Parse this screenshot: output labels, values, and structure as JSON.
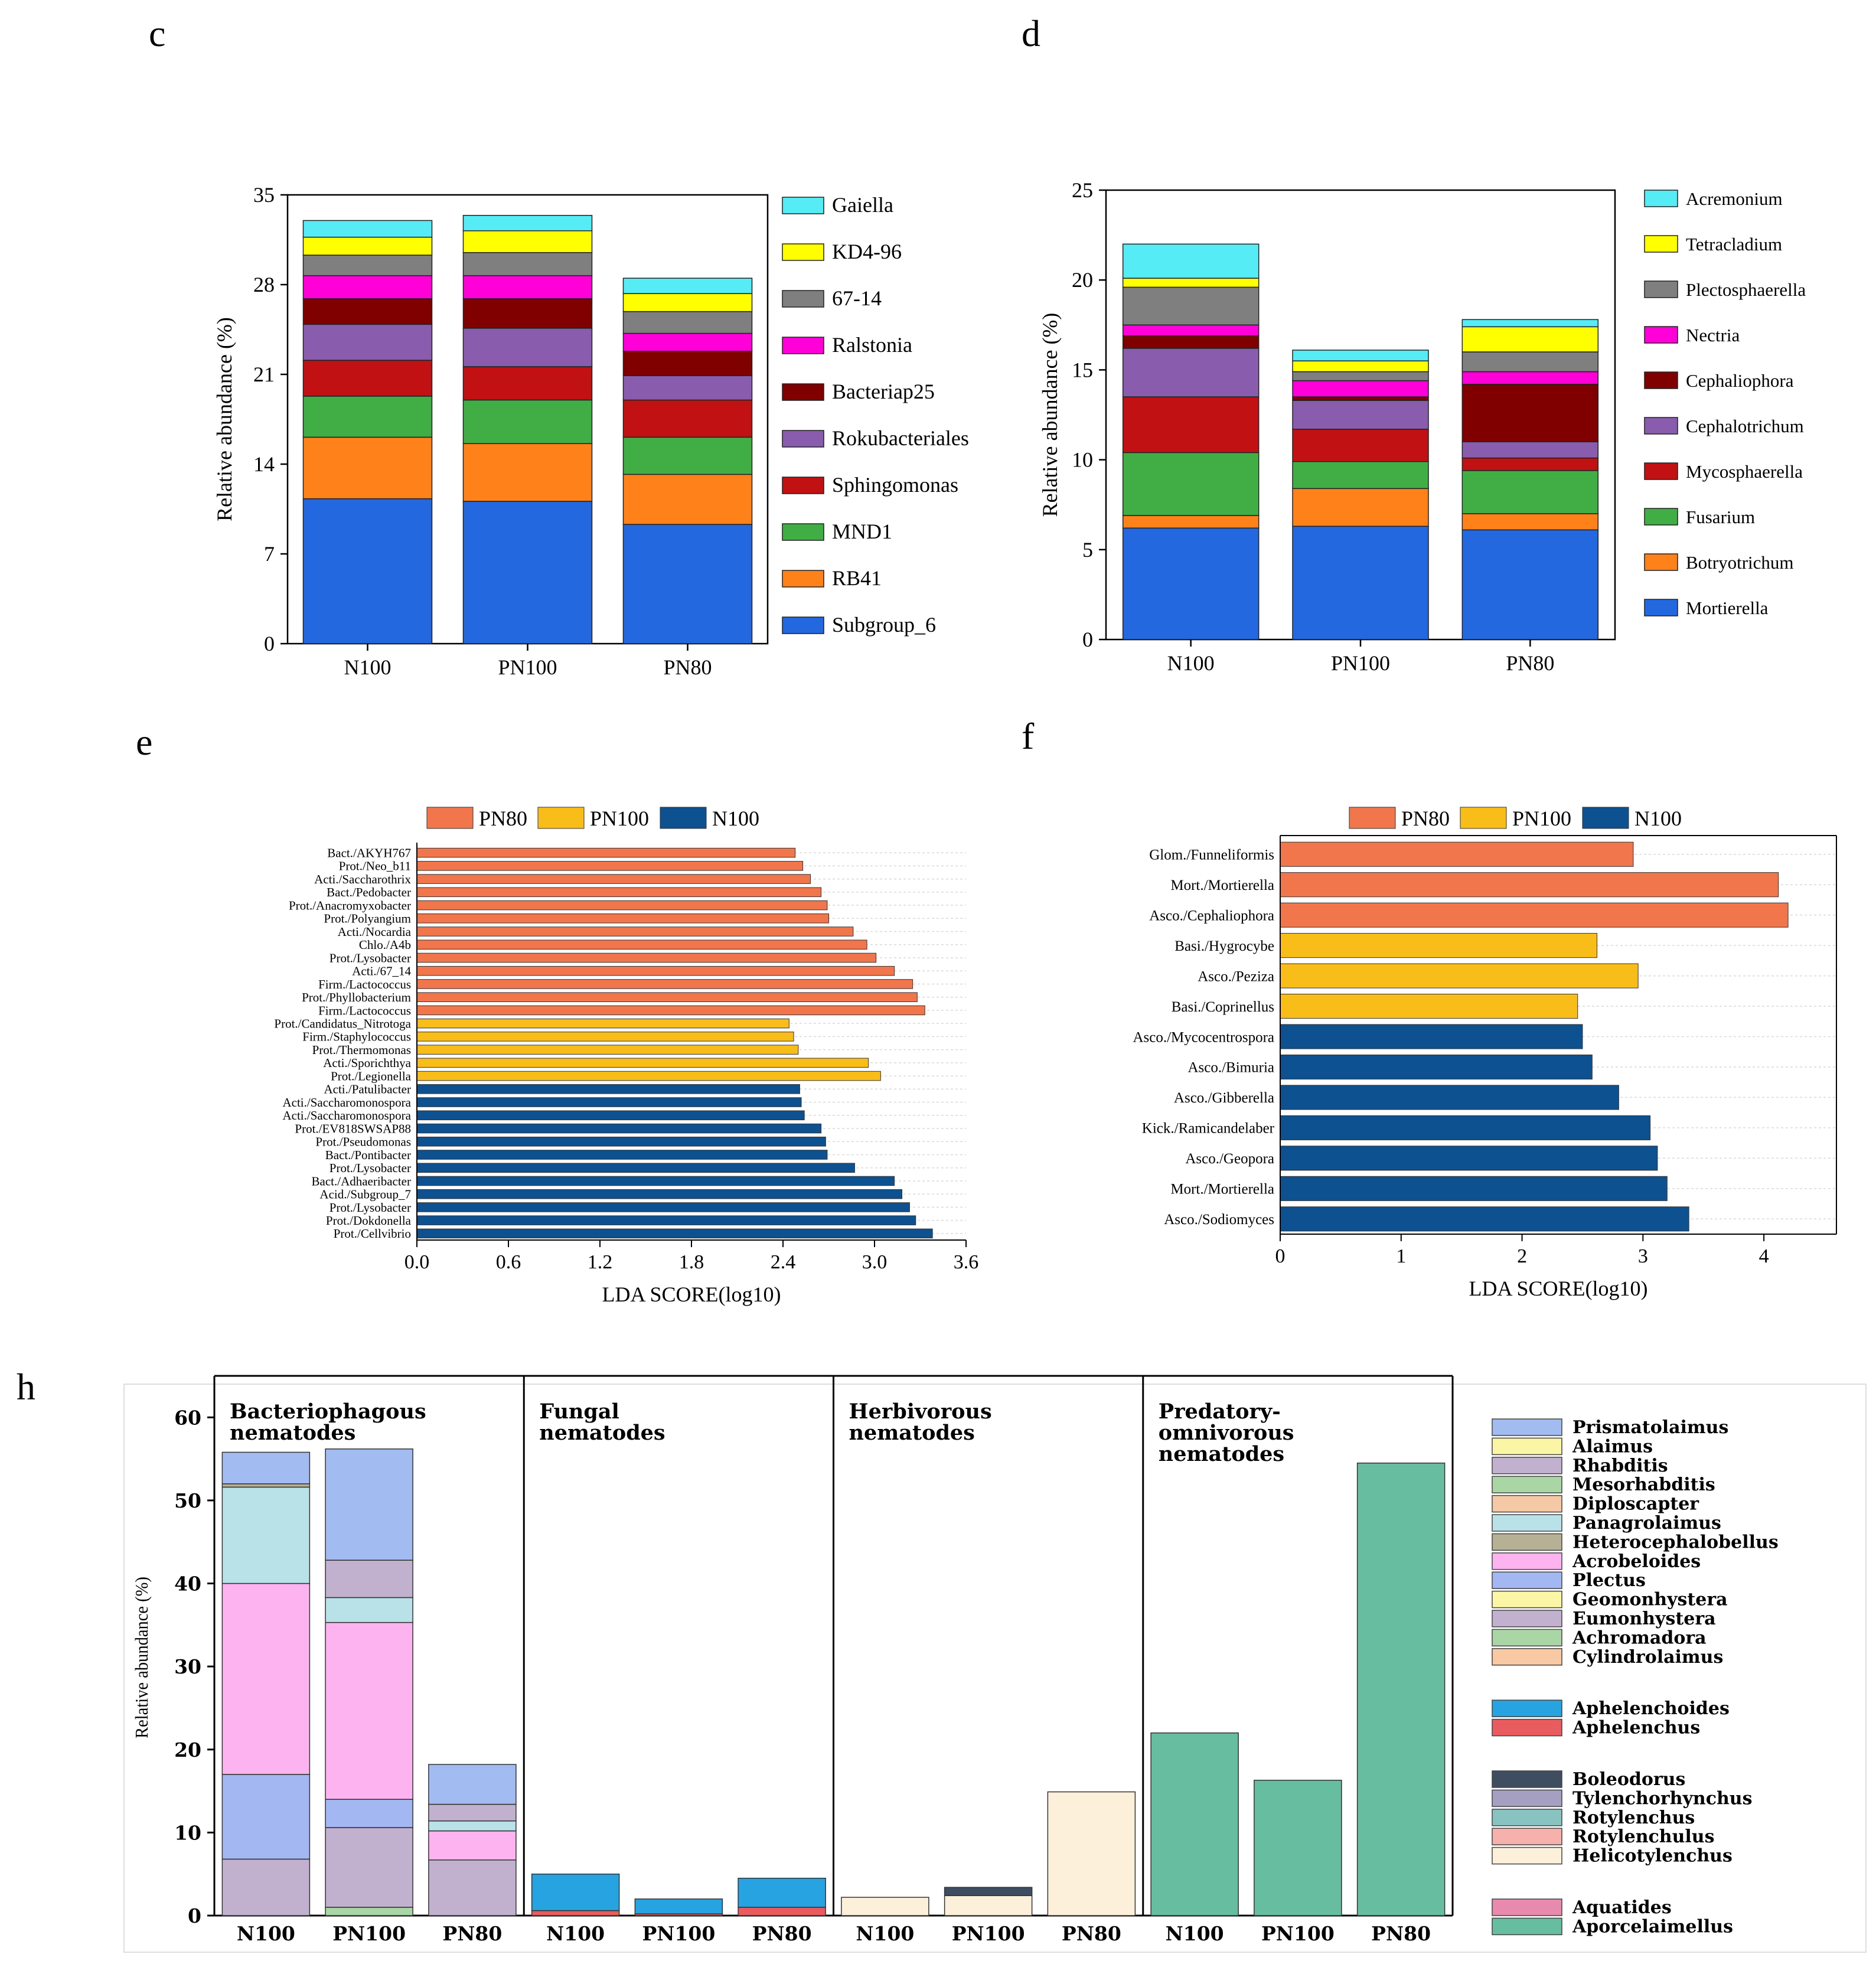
{
  "panel_labels": {
    "c": "c",
    "d": "d",
    "e": "e",
    "f": "f",
    "h": "h"
  },
  "chart_data": [
    {
      "id": "c",
      "type": "bar",
      "stacked": true,
      "categories": [
        "N100",
        "PN100",
        "PN80"
      ],
      "ylabel": "Relative abundance (%)",
      "xlabel": "",
      "ylim": [
        0,
        35
      ],
      "yticks": [
        0,
        7,
        14,
        21,
        28,
        35
      ],
      "legend_position": "right",
      "series": [
        {
          "name": "Subgroup_6",
          "color": "#2468e0",
          "values": [
            11.3,
            11.1,
            9.3
          ]
        },
        {
          "name": "RB41",
          "color": "#ff8119",
          "values": [
            4.8,
            4.5,
            3.9
          ]
        },
        {
          "name": "MND1",
          "color": "#40ae45",
          "values": [
            3.2,
            3.4,
            2.9
          ]
        },
        {
          "name": "Sphingomonas",
          "color": "#c21113",
          "values": [
            2.8,
            2.6,
            2.9
          ]
        },
        {
          "name": "Rokubacteriales",
          "color": "#8a5cad",
          "values": [
            2.8,
            3.0,
            1.9
          ]
        },
        {
          "name": "Bacteriap25",
          "color": "#800000",
          "values": [
            2.0,
            2.3,
            1.9
          ]
        },
        {
          "name": "Ralstonia",
          "color": "#ff00d9",
          "values": [
            1.8,
            1.8,
            1.4
          ]
        },
        {
          "name": "67-14",
          "color": "#7f7f7f",
          "values": [
            1.6,
            1.8,
            1.7
          ]
        },
        {
          "name": "KD4-96",
          "color": "#ffff00",
          "values": [
            1.4,
            1.7,
            1.4
          ]
        },
        {
          "name": "Gaiella",
          "color": "#55ecf6",
          "values": [
            1.3,
            1.2,
            1.2
          ]
        }
      ]
    },
    {
      "id": "d",
      "type": "bar",
      "stacked": true,
      "categories": [
        "N100",
        "PN100",
        "PN80"
      ],
      "ylabel": "Relative abundance (%)",
      "xlabel": "",
      "ylim": [
        0,
        25
      ],
      "yticks": [
        0,
        5,
        10,
        15,
        20,
        25
      ],
      "legend_position": "right",
      "series": [
        {
          "name": "Mortierella",
          "color": "#2468e0",
          "values": [
            6.2,
            6.3,
            6.1
          ]
        },
        {
          "name": "Botryotrichum",
          "color": "#ff8119",
          "values": [
            0.7,
            2.1,
            0.9
          ]
        },
        {
          "name": "Fusarium",
          "color": "#40ae45",
          "values": [
            3.5,
            1.5,
            2.4
          ]
        },
        {
          "name": "Mycosphaerella",
          "color": "#c21113",
          "values": [
            3.1,
            1.8,
            0.7
          ]
        },
        {
          "name": "Cephalotrichum",
          "color": "#8a5cad",
          "values": [
            2.7,
            1.6,
            0.9
          ]
        },
        {
          "name": "Cephaliophora",
          "color": "#800000",
          "values": [
            0.7,
            0.2,
            3.2
          ]
        },
        {
          "name": "Nectria",
          "color": "#ff00d9",
          "values": [
            0.6,
            0.9,
            0.7
          ]
        },
        {
          "name": "Plectosphaerella",
          "color": "#7f7f7f",
          "values": [
            2.1,
            0.5,
            1.1
          ]
        },
        {
          "name": "Tetracladium",
          "color": "#ffff00",
          "values": [
            0.5,
            0.6,
            1.4
          ]
        },
        {
          "name": "Acremonium",
          "color": "#55ecf6",
          "values": [
            1.9,
            0.6,
            0.4
          ]
        }
      ]
    },
    {
      "id": "e",
      "type": "bar",
      "orientation": "horizontal",
      "xlabel": "LDA SCORE(log10)",
      "xlim": [
        0,
        3.6
      ],
      "xticks": [
        "0.0",
        "0.6",
        "1.2",
        "1.8",
        "2.4",
        "3.0",
        "3.6"
      ],
      "legend": [
        {
          "name": "PN80",
          "color": "#f2764c"
        },
        {
          "name": "PN100",
          "color": "#f9bd19"
        },
        {
          "name": "N100",
          "color": "#0e5190"
        }
      ],
      "bars": [
        {
          "label": "Bact./AKYH767",
          "group": "PN80",
          "value": 2.48
        },
        {
          "label": "Prot./Neo_b11",
          "group": "PN80",
          "value": 2.53
        },
        {
          "label": "Acti./Saccharothrix",
          "group": "PN80",
          "value": 2.58
        },
        {
          "label": "Bact./Pedobacter",
          "group": "PN80",
          "value": 2.65
        },
        {
          "label": "Prot./Anacromyxobacter",
          "group": "PN80",
          "value": 2.69
        },
        {
          "label": "Prot./Polyangium",
          "group": "PN80",
          "value": 2.7
        },
        {
          "label": "Acti./Nocardia",
          "group": "PN80",
          "value": 2.86
        },
        {
          "label": "Chlo./A4b",
          "group": "PN80",
          "value": 2.95
        },
        {
          "label": "Prot./Lysobacter",
          "group": "PN80",
          "value": 3.01
        },
        {
          "label": "Acti./67_14",
          "group": "PN80",
          "value": 3.13
        },
        {
          "label": "Firm./Lactococcus",
          "group": "PN80",
          "value": 3.25
        },
        {
          "label": "Prot./Phyllobacterium",
          "group": "PN80",
          "value": 3.28
        },
        {
          "label": "Firm./Lactococcus",
          "group": "PN80",
          "value": 3.33
        },
        {
          "label": "Prot./Candidatus_Nitrotoga",
          "group": "PN100",
          "value": 2.44
        },
        {
          "label": "Firm./Staphylococcus",
          "group": "PN100",
          "value": 2.47
        },
        {
          "label": "Prot./Thermomonas",
          "group": "PN100",
          "value": 2.5
        },
        {
          "label": "Acti./Sporichthya",
          "group": "PN100",
          "value": 2.96
        },
        {
          "label": "Prot./Legionella",
          "group": "PN100",
          "value": 3.04
        },
        {
          "label": "Acti./Patulibacter",
          "group": "N100",
          "value": 2.51
        },
        {
          "label": "Acti./Saccharomonospora",
          "group": "N100",
          "value": 2.52
        },
        {
          "label": "Acti./Saccharomonospora",
          "group": "N100",
          "value": 2.54
        },
        {
          "label": "Prot./EV818SWSAP88",
          "group": "N100",
          "value": 2.65
        },
        {
          "label": "Prot./Pseudomonas",
          "group": "N100",
          "value": 2.68
        },
        {
          "label": "Bact./Pontibacter",
          "group": "N100",
          "value": 2.69
        },
        {
          "label": "Prot./Lysobacter",
          "group": "N100",
          "value": 2.87
        },
        {
          "label": "Bact./Adhaeribacter",
          "group": "N100",
          "value": 3.13
        },
        {
          "label": "Acid./Subgroup_7",
          "group": "N100",
          "value": 3.18
        },
        {
          "label": "Prot./Lysobacter",
          "group": "N100",
          "value": 3.23
        },
        {
          "label": "Prot./Dokdonella",
          "group": "N100",
          "value": 3.27
        },
        {
          "label": "Prot./Cellvibrio",
          "group": "N100",
          "value": 3.38
        }
      ]
    },
    {
      "id": "f",
      "type": "bar",
      "orientation": "horizontal",
      "xlabel": "LDA SCORE(log10)",
      "xlim": [
        0,
        4.6
      ],
      "xticks": [
        "0",
        "1",
        "2",
        "3",
        "4"
      ],
      "legend": [
        {
          "name": "PN80",
          "color": "#f2764c"
        },
        {
          "name": "PN100",
          "color": "#f9bd19"
        },
        {
          "name": "N100",
          "color": "#0e5190"
        }
      ],
      "bars": [
        {
          "label": "Glom./Funneliformis",
          "group": "PN80",
          "value": 2.92
        },
        {
          "label": "Mort./Mortierella",
          "group": "PN80",
          "value": 4.12
        },
        {
          "label": "Asco./Cephaliophora",
          "group": "PN80",
          "value": 4.2
        },
        {
          "label": "Basi./Hygrocybe",
          "group": "PN100",
          "value": 2.62
        },
        {
          "label": "Asco./Peziza",
          "group": "PN100",
          "value": 2.96
        },
        {
          "label": "Basi./Coprinellus",
          "group": "PN100",
          "value": 2.46
        },
        {
          "label": "Asco./Mycocentrospora",
          "group": "N100",
          "value": 2.5
        },
        {
          "label": "Asco./Bimuria",
          "group": "N100",
          "value": 2.58
        },
        {
          "label": "Asco./Gibberella",
          "group": "N100",
          "value": 2.8
        },
        {
          "label": "Kick./Ramicandelaber",
          "group": "N100",
          "value": 3.06
        },
        {
          "label": "Asco./Geopora",
          "group": "N100",
          "value": 3.12
        },
        {
          "label": "Mort./Mortierella",
          "group": "N100",
          "value": 3.2
        },
        {
          "label": "Asco./Sodiomyces",
          "group": "N100",
          "value": 3.38
        }
      ]
    },
    {
      "id": "h",
      "type": "bar",
      "stacked": true,
      "ylabel": "Relative abundance (%)",
      "ylim": [
        0,
        65
      ],
      "yticks": [
        0,
        10,
        20,
        30,
        40,
        50,
        60
      ],
      "groups": [
        {
          "title": "Bacteriophagous nematodes",
          "title_lines": [
            "Bacteriophagous",
            "nematodes"
          ],
          "categories": [
            "N100",
            "PN100",
            "PN80"
          ],
          "stacks": [
            [
              {
                "name": "Eumonhystera",
                "value": 6.8
              },
              {
                "name": "Plectus",
                "value": 10.2
              },
              {
                "name": "Acrobeloides",
                "value": 23.0
              },
              {
                "name": "Panagrolaimus",
                "value": 11.6
              },
              {
                "name": "Heterocephalobellus",
                "value": 0.4
              },
              {
                "name": "Prismatolaimus",
                "value": 3.8
              }
            ],
            [
              {
                "name": "Achromadora",
                "value": 1.0
              },
              {
                "name": "Eumonhystera",
                "value": 9.6
              },
              {
                "name": "Plectus",
                "value": 3.4
              },
              {
                "name": "Acrobeloides",
                "value": 21.3
              },
              {
                "name": "Panagrolaimus",
                "value": 3.0
              },
              {
                "name": "Rhabditis",
                "value": 4.5
              },
              {
                "name": "Prismatolaimus",
                "value": 13.4
              }
            ],
            [
              {
                "name": "Eumonhystera",
                "value": 6.7
              },
              {
                "name": "Acrobeloides",
                "value": 3.5
              },
              {
                "name": "Panagrolaimus",
                "value": 1.2
              },
              {
                "name": "Rhabditis",
                "value": 2.0
              },
              {
                "name": "Prismatolaimus",
                "value": 4.8
              }
            ]
          ]
        },
        {
          "title": "Fungal nematodes",
          "title_lines": [
            "Fungal",
            "nematodes"
          ],
          "categories": [
            "N100",
            "PN100",
            "PN80"
          ],
          "stacks": [
            [
              {
                "name": "Aphelenchus",
                "value": 0.6
              },
              {
                "name": "Aphelenchoides",
                "value": 4.4
              }
            ],
            [
              {
                "name": "Aphelenchus",
                "value": 0.2
              },
              {
                "name": "Aphelenchoides",
                "value": 1.8
              }
            ],
            [
              {
                "name": "Aphelenchus",
                "value": 1.0
              },
              {
                "name": "Aphelenchoides",
                "value": 3.5
              }
            ]
          ]
        },
        {
          "title": "Herbivorous nematodes",
          "title_lines": [
            "Herbivorous",
            "nematodes"
          ],
          "categories": [
            "N100",
            "PN100",
            "PN80"
          ],
          "stacks": [
            [
              {
                "name": "Helicotylenchus",
                "value": 2.2
              }
            ],
            [
              {
                "name": "Helicotylenchus",
                "value": 2.4
              },
              {
                "name": "Boleodorus",
                "value": 1.0
              }
            ],
            [
              {
                "name": "Helicotylenchus",
                "value": 14.9
              }
            ]
          ]
        },
        {
          "title": "Predatory-omnivorous nematodes",
          "title_lines": [
            "Predatory-",
            "omnivorous",
            "nematodes"
          ],
          "categories": [
            "N100",
            "PN100",
            "PN80"
          ],
          "stacks": [
            [
              {
                "name": "Aporcelaimellus",
                "value": 22.0
              }
            ],
            [
              {
                "name": "Aporcelaimellus",
                "value": 16.3
              }
            ],
            [
              {
                "name": "Aporcelaimellus",
                "value": 54.5
              }
            ]
          ]
        }
      ],
      "legend_groups": [
        [
          {
            "name": "Prismatolaimus",
            "color": "#a2bbf0"
          },
          {
            "name": "Alaimus",
            "color": "#fbf6a6"
          },
          {
            "name": "Rhabditis",
            "color": "#c2b0cf"
          },
          {
            "name": "Mesorhabditis",
            "color": "#a9d6a4"
          },
          {
            "name": "Diploscapter",
            "color": "#f5c9a6"
          },
          {
            "name": "Panagrolaimus",
            "color": "#b8e1e8"
          },
          {
            "name": "Heterocephalobellus",
            "color": "#b6b094"
          },
          {
            "name": "Acrobeloides",
            "color": "#fdb3f0"
          },
          {
            "name": "Plectus",
            "color": "#a3b7f2"
          },
          {
            "name": "Geomonhystera",
            "color": "#fbf6a6"
          },
          {
            "name": "Eumonhystera",
            "color": "#c2b0cf"
          },
          {
            "name": "Achromadora",
            "color": "#a9d6a4"
          },
          {
            "name": "Cylindrolaimus",
            "color": "#f8c9a2"
          }
        ],
        [
          {
            "name": "Aphelenchoides",
            "color": "#27a3e2"
          },
          {
            "name": "Aphelenchus",
            "color": "#e85b5e"
          }
        ],
        [
          {
            "name": "Boleodorus",
            "color": "#3e4d60"
          },
          {
            "name": "Tylenchorhynchus",
            "color": "#a5a0c2"
          },
          {
            "name": "Rotylenchus",
            "color": "#89c3c1"
          },
          {
            "name": "Rotylenchulus",
            "color": "#f6b1ad"
          },
          {
            "name": "Helicotylenchus",
            "color": "#fcf0db"
          }
        ],
        [
          {
            "name": "Aquatides",
            "color": "#e78aae"
          },
          {
            "name": "Aporcelaimellus",
            "color": "#66bd9f"
          }
        ]
      ]
    }
  ]
}
